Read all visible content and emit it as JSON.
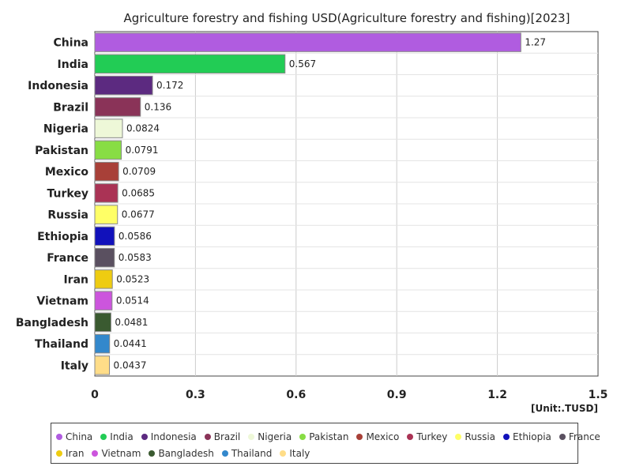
{
  "chart_data": {
    "type": "bar",
    "orientation": "horizontal",
    "title": "Agriculture forestry and fishing USD(Agriculture forestry and fishing)[2023]",
    "unit_label": "[Unit:.TUSD]",
    "categories": [
      "China",
      "India",
      "Indonesia",
      "Brazil",
      "Nigeria",
      "Pakistan",
      "Mexico",
      "Turkey",
      "Russia",
      "Ethiopia",
      "France",
      "Iran",
      "Vietnam",
      "Bangladesh",
      "Thailand",
      "Italy"
    ],
    "values": [
      1.27,
      0.567,
      0.172,
      0.136,
      0.0824,
      0.0791,
      0.0709,
      0.0685,
      0.0677,
      0.0586,
      0.0583,
      0.0523,
      0.0514,
      0.0481,
      0.0441,
      0.0437
    ],
    "value_labels": [
      "1.27",
      "0.567",
      "0.172",
      "0.136",
      "0.0824",
      "0.0791",
      "0.0709",
      "0.0685",
      "0.0677",
      "0.0586",
      "0.0583",
      "0.0523",
      "0.0514",
      "0.0481",
      "0.0441",
      "0.0437"
    ],
    "colors": [
      "#b05ce0",
      "#22cc55",
      "#5c2a80",
      "#8a3358",
      "#eef8d8",
      "#88dd44",
      "#a84038",
      "#aa3355",
      "#ffff66",
      "#1111bb",
      "#5a5060",
      "#eecc11",
      "#cc55dd",
      "#3a5a30",
      "#3388cc",
      "#ffdd88"
    ],
    "xlim": [
      0,
      1.5
    ],
    "xticks": [
      0,
      0.3,
      0.6,
      0.9,
      1.2,
      1.5
    ],
    "xtick_labels": [
      "0",
      "0.3",
      "0.6",
      "0.9",
      "1.2",
      "1.5"
    ],
    "grid": true,
    "legend_position": "bottom"
  }
}
